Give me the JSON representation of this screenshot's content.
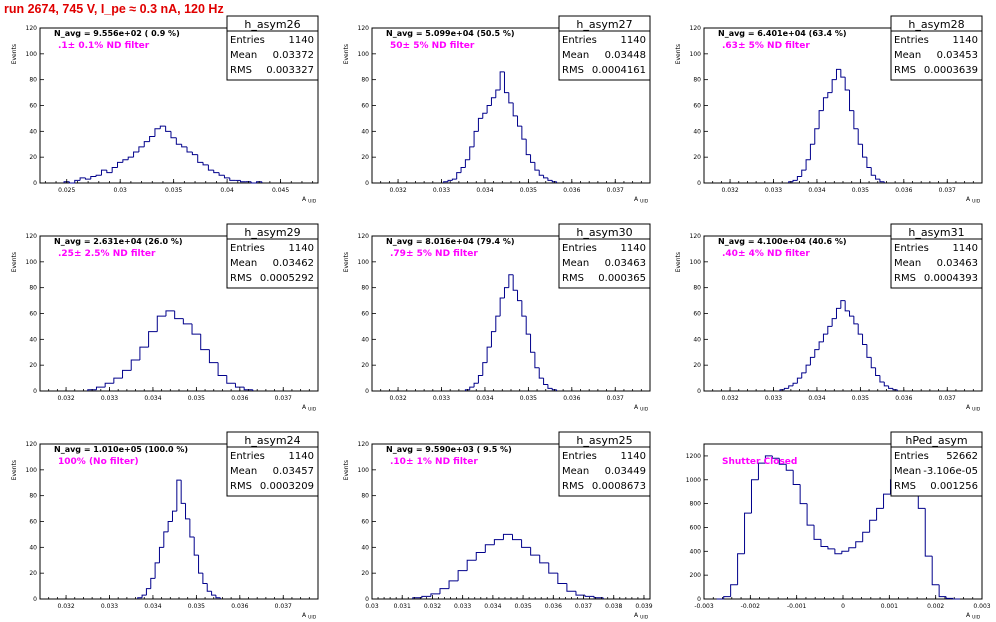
{
  "title": "run 2674,   745 V, I_pe ≈ 0.3 nA, 120 Hz",
  "stat_labels": {
    "entries": "Entries",
    "mean": "Mean",
    "rms": "RMS"
  },
  "y_axis_title": "Events",
  "x_axis_title": "A",
  "x_axis_subscript": "UID",
  "colors": {
    "title": "#e00000",
    "histogram": "#00008b",
    "annotation": "#ff00ff"
  },
  "panels": [
    {
      "name": "h_asym26",
      "entries": "1140",
      "mean": "0.03372",
      "rms": "0.003327",
      "navg": "N_avg = 9.556e+02 ( 0.9 %)",
      "filter": ".1± 0.1% ND filter",
      "x_ticks": [
        "0.025",
        "0.03",
        "0.035",
        "0.04",
        "0.045"
      ],
      "y_ticks": [
        "0",
        "20",
        "40",
        "60",
        "80",
        "100",
        "120"
      ]
    },
    {
      "name": "h_asym27",
      "entries": "1140",
      "mean": "0.03448",
      "rms": "0.0004161",
      "navg": "N_avg = 5.099e+04 (50.5 %)",
      "filter": "50± 5% ND filter",
      "x_ticks": [
        "0.032",
        "0.033",
        "0.034",
        "0.035",
        "0.036",
        "0.037"
      ],
      "y_ticks": [
        "0",
        "20",
        "40",
        "60",
        "80",
        "100",
        "120"
      ]
    },
    {
      "name": "h_asym28",
      "entries": "1140",
      "mean": "0.03453",
      "rms": "0.0003639",
      "navg": "N_avg = 6.401e+04 (63.4 %)",
      "filter": ".63± 5% ND filter",
      "x_ticks": [
        "0.032",
        "0.033",
        "0.034",
        "0.035",
        "0.036",
        "0.037"
      ],
      "y_ticks": [
        "0",
        "20",
        "40",
        "60",
        "80",
        "100",
        "120"
      ]
    },
    {
      "name": "h_asym29",
      "entries": "1140",
      "mean": "0.03462",
      "rms": "0.0005292",
      "navg": "N_avg = 2.631e+04 (26.0 %)",
      "filter": ".25± 2.5% ND filter",
      "x_ticks": [
        "0.032",
        "0.033",
        "0.034",
        "0.035",
        "0.036",
        "0.037"
      ],
      "y_ticks": [
        "0",
        "20",
        "40",
        "60",
        "80",
        "100",
        "120"
      ]
    },
    {
      "name": "h_asym30",
      "entries": "1140",
      "mean": "0.03463",
      "rms": "0.000365",
      "navg": "N_avg = 8.016e+04 (79.4 %)",
      "filter": ".79± 5% ND filter",
      "x_ticks": [
        "0.032",
        "0.033",
        "0.034",
        "0.035",
        "0.036",
        "0.037"
      ],
      "y_ticks": [
        "0",
        "20",
        "40",
        "60",
        "80",
        "100",
        "120"
      ]
    },
    {
      "name": "h_asym31",
      "entries": "1140",
      "mean": "0.03463",
      "rms": "0.0004393",
      "navg": "N_avg = 4.100e+04 (40.6 %)",
      "filter": ".40± 4% ND filter",
      "x_ticks": [
        "0.032",
        "0.033",
        "0.034",
        "0.035",
        "0.036",
        "0.037"
      ],
      "y_ticks": [
        "0",
        "20",
        "40",
        "60",
        "80",
        "100",
        "120"
      ]
    },
    {
      "name": "h_asym24",
      "entries": "1140",
      "mean": "0.03457",
      "rms": "0.0003209",
      "navg": "N_avg = 1.010e+05 (100.0 %)",
      "filter": "100% (No filter)",
      "x_ticks": [
        "0.032",
        "0.033",
        "0.034",
        "0.035",
        "0.036",
        "0.037"
      ],
      "y_ticks": [
        "0",
        "20",
        "40",
        "60",
        "80",
        "100",
        "120"
      ]
    },
    {
      "name": "h_asym25",
      "entries": "1140",
      "mean": "0.03449",
      "rms": "0.0008673",
      "navg": "N_avg = 9.590e+03 ( 9.5 %)",
      "filter": ".10± 1% ND filter",
      "x_ticks": [
        "0.03",
        "0.031",
        "0.032",
        "0.033",
        "0.034",
        "0.035",
        "0.036",
        "0.037",
        "0.038",
        "0.039"
      ],
      "y_ticks": [
        "0",
        "20",
        "40",
        "60",
        "80",
        "100",
        "120"
      ]
    },
    {
      "name": "hPed_asym",
      "entries": "52662",
      "mean": "-3.106e-05",
      "rms": "0.001256",
      "navg": "",
      "filter": "Shutter Closed",
      "x_ticks": [
        "-0.003",
        "-0.002",
        "-0.001",
        "0",
        "0.001",
        "0.002",
        "0.003"
      ],
      "y_ticks": [
        "0",
        "200",
        "400",
        "600",
        "800",
        "1000",
        "1200"
      ]
    }
  ],
  "chart_data": [
    {
      "type": "bar",
      "name": "h_asym26",
      "xlabel": "A UID",
      "ylabel": "Events",
      "xlim": [
        0.0225,
        0.0485
      ],
      "ylim": [
        0,
        120
      ],
      "x_ticks": [
        0.025,
        0.03,
        0.035,
        0.04,
        0.045
      ],
      "y_ticks": [
        0,
        20,
        40,
        60,
        80,
        100,
        120
      ],
      "x": [
        0.025,
        0.0255,
        0.026,
        0.0265,
        0.027,
        0.0275,
        0.028,
        0.0285,
        0.029,
        0.0295,
        0.03,
        0.0305,
        0.031,
        0.0315,
        0.032,
        0.0325,
        0.033,
        0.0335,
        0.034,
        0.0345,
        0.035,
        0.0355,
        0.036,
        0.0365,
        0.037,
        0.0375,
        0.038,
        0.0385,
        0.039,
        0.0395,
        0.04,
        0.0405,
        0.041,
        0.0415,
        0.042,
        0.0425,
        0.043
      ],
      "values": [
        1,
        0,
        2,
        4,
        3,
        5,
        6,
        10,
        8,
        12,
        16,
        18,
        20,
        24,
        28,
        32,
        36,
        42,
        44,
        40,
        35,
        30,
        28,
        24,
        22,
        16,
        14,
        10,
        8,
        6,
        4,
        2,
        2,
        1,
        1,
        0,
        1
      ]
    },
    {
      "type": "bar",
      "name": "h_asym27",
      "xlabel": "A UID",
      "ylabel": "Events",
      "xlim": [
        0.0314,
        0.0378
      ],
      "ylim": [
        0,
        120
      ],
      "x_ticks": [
        0.032,
        0.033,
        0.034,
        0.035,
        0.036,
        0.037
      ],
      "y_ticks": [
        0,
        20,
        40,
        60,
        80,
        100,
        120
      ],
      "x": [
        0.0331,
        0.0332,
        0.0333,
        0.0334,
        0.0335,
        0.0336,
        0.0337,
        0.0338,
        0.0339,
        0.034,
        0.0341,
        0.0342,
        0.0343,
        0.0344,
        0.0345,
        0.0346,
        0.0347,
        0.0348,
        0.0349,
        0.035,
        0.0351,
        0.0352,
        0.0353,
        0.0354,
        0.0355,
        0.0356
      ],
      "values": [
        1,
        2,
        3,
        8,
        12,
        18,
        28,
        40,
        50,
        54,
        60,
        66,
        72,
        86,
        70,
        62,
        52,
        44,
        34,
        22,
        16,
        10,
        6,
        4,
        2,
        1
      ]
    },
    {
      "type": "bar",
      "name": "h_asym28",
      "xlabel": "A UID",
      "ylabel": "Events",
      "xlim": [
        0.0314,
        0.0378
      ],
      "ylim": [
        0,
        120
      ],
      "x_ticks": [
        0.032,
        0.033,
        0.034,
        0.035,
        0.036,
        0.037
      ],
      "y_ticks": [
        0,
        20,
        40,
        60,
        80,
        100,
        120
      ],
      "x": [
        0.0334,
        0.0335,
        0.0336,
        0.0337,
        0.0338,
        0.0339,
        0.034,
        0.0341,
        0.0342,
        0.0343,
        0.0344,
        0.0345,
        0.0346,
        0.0347,
        0.0348,
        0.0349,
        0.035,
        0.0351,
        0.0352,
        0.0353,
        0.0354,
        0.0355
      ],
      "values": [
        1,
        2,
        5,
        10,
        18,
        30,
        42,
        56,
        66,
        70,
        80,
        88,
        82,
        72,
        56,
        42,
        30,
        20,
        12,
        6,
        3,
        1
      ]
    },
    {
      "type": "bar",
      "name": "h_asym29",
      "xlabel": "A UID",
      "ylabel": "Events",
      "xlim": [
        0.0314,
        0.0378
      ],
      "ylim": [
        0,
        120
      ],
      "x_ticks": [
        0.032,
        0.033,
        0.034,
        0.035,
        0.036,
        0.037
      ],
      "y_ticks": [
        0,
        20,
        40,
        60,
        80,
        100,
        120
      ],
      "x": [
        0.0326,
        0.0328,
        0.033,
        0.0332,
        0.0334,
        0.0336,
        0.0338,
        0.034,
        0.0342,
        0.0344,
        0.0346,
        0.0348,
        0.035,
        0.0352,
        0.0354,
        0.0356,
        0.0358,
        0.036,
        0.0362
      ],
      "values": [
        1,
        3,
        6,
        10,
        16,
        24,
        34,
        46,
        58,
        62,
        56,
        52,
        44,
        32,
        22,
        12,
        6,
        3,
        1
      ]
    },
    {
      "type": "bar",
      "name": "h_asym30",
      "xlabel": "A UID",
      "ylabel": "Events",
      "xlim": [
        0.0314,
        0.0378
      ],
      "ylim": [
        0,
        120
      ],
      "x_ticks": [
        0.032,
        0.033,
        0.034,
        0.035,
        0.036,
        0.037
      ],
      "y_ticks": [
        0,
        20,
        40,
        60,
        80,
        100,
        120
      ],
      "x": [
        0.0336,
        0.0337,
        0.0338,
        0.0339,
        0.034,
        0.0341,
        0.0342,
        0.0343,
        0.0344,
        0.0345,
        0.0346,
        0.0347,
        0.0348,
        0.0349,
        0.035,
        0.0351,
        0.0352,
        0.0353,
        0.0354,
        0.0355,
        0.0356
      ],
      "values": [
        1,
        3,
        6,
        12,
        22,
        34,
        46,
        58,
        72,
        80,
        90,
        78,
        70,
        58,
        44,
        30,
        18,
        10,
        5,
        2,
        1
      ]
    },
    {
      "type": "bar",
      "name": "h_asym31",
      "xlabel": "A UID",
      "ylabel": "Events",
      "xlim": [
        0.0314,
        0.0378
      ],
      "ylim": [
        0,
        120
      ],
      "x_ticks": [
        0.032,
        0.033,
        0.034,
        0.035,
        0.036,
        0.037
      ],
      "y_ticks": [
        0,
        20,
        40,
        60,
        80,
        100,
        120
      ],
      "x": [
        0.0332,
        0.0333,
        0.0334,
        0.0335,
        0.0336,
        0.0337,
        0.0338,
        0.0339,
        0.034,
        0.0341,
        0.0342,
        0.0343,
        0.0344,
        0.0345,
        0.0346,
        0.0347,
        0.0348,
        0.0349,
        0.035,
        0.0351,
        0.0352,
        0.0353,
        0.0354,
        0.0355,
        0.0356,
        0.0357,
        0.0358
      ],
      "values": [
        1,
        2,
        4,
        6,
        10,
        14,
        20,
        26,
        32,
        38,
        44,
        50,
        56,
        64,
        70,
        62,
        58,
        52,
        44,
        36,
        26,
        18,
        12,
        7,
        4,
        2,
        1
      ]
    },
    {
      "type": "bar",
      "name": "h_asym24",
      "xlabel": "A UID",
      "ylabel": "Events",
      "xlim": [
        0.0314,
        0.0378
      ],
      "ylim": [
        0,
        120
      ],
      "x_ticks": [
        0.032,
        0.033,
        0.034,
        0.035,
        0.036,
        0.037
      ],
      "y_ticks": [
        0,
        20,
        40,
        60,
        80,
        100,
        120
      ],
      "x": [
        0.0337,
        0.0338,
        0.0339,
        0.034,
        0.0341,
        0.0342,
        0.0343,
        0.0344,
        0.0345,
        0.0346,
        0.0347,
        0.0348,
        0.0349,
        0.035,
        0.0351,
        0.0352,
        0.0353,
        0.0354,
        0.0355
      ],
      "values": [
        1,
        3,
        8,
        16,
        28,
        40,
        52,
        60,
        68,
        92,
        74,
        62,
        48,
        34,
        20,
        12,
        6,
        3,
        1
      ]
    },
    {
      "type": "bar",
      "name": "h_asym25",
      "xlabel": "A UID",
      "ylabel": "Events",
      "xlim": [
        0.03,
        0.0392
      ],
      "ylim": [
        0,
        120
      ],
      "x_ticks": [
        0.03,
        0.031,
        0.032,
        0.033,
        0.034,
        0.035,
        0.036,
        0.037,
        0.038,
        0.039
      ],
      "y_ticks": [
        0,
        20,
        40,
        60,
        80,
        100,
        120
      ],
      "x": [
        0.0315,
        0.0318,
        0.0321,
        0.0324,
        0.0327,
        0.033,
        0.0333,
        0.0336,
        0.0339,
        0.0342,
        0.0345,
        0.0348,
        0.0351,
        0.0354,
        0.0357,
        0.036,
        0.0363,
        0.0366,
        0.0369,
        0.0372,
        0.0375
      ],
      "values": [
        1,
        2,
        4,
        8,
        14,
        22,
        30,
        36,
        42,
        46,
        50,
        46,
        40,
        34,
        28,
        20,
        12,
        6,
        3,
        2,
        1
      ]
    },
    {
      "type": "bar",
      "name": "hPed_asym",
      "xlabel": "A UID",
      "ylabel": "",
      "xlim": [
        -0.003,
        0.003
      ],
      "ylim": [
        0,
        1300
      ],
      "x_ticks": [
        -0.003,
        -0.002,
        -0.001,
        0,
        0.001,
        0.002,
        0.003
      ],
      "y_ticks": [
        0,
        200,
        400,
        600,
        800,
        1000,
        1200
      ],
      "x": [
        -0.00265,
        -0.0025,
        -0.00235,
        -0.0022,
        -0.00205,
        -0.0019,
        -0.00175,
        -0.0016,
        -0.00145,
        -0.0013,
        -0.00115,
        -0.001,
        -0.00085,
        -0.0007,
        -0.00055,
        -0.0004,
        -0.00025,
        -0.0001,
        5e-05,
        0.0002,
        0.00035,
        0.0005,
        0.00065,
        0.0008,
        0.00095,
        0.0011,
        0.00125,
        0.0014,
        0.00155,
        0.0017,
        0.00185,
        0.002,
        0.00215,
        0.0023,
        0.00245
      ],
      "values": [
        0,
        20,
        120,
        380,
        720,
        1000,
        1140,
        1200,
        1180,
        1130,
        1080,
        960,
        800,
        620,
        500,
        440,
        420,
        380,
        400,
        430,
        480,
        560,
        660,
        760,
        880,
        1000,
        1120,
        1180,
        1100,
        760,
        360,
        120,
        20,
        5,
        0
      ]
    }
  ]
}
